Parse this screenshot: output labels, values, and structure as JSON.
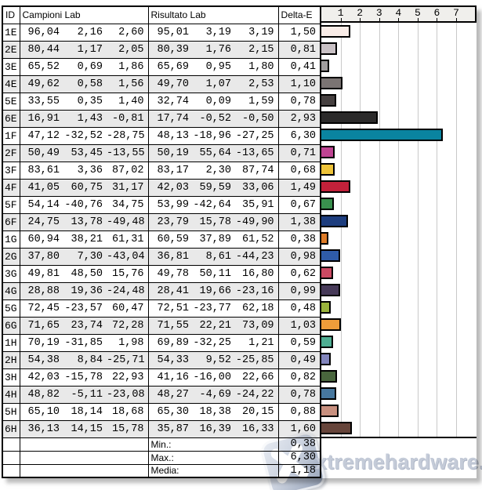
{
  "table": {
    "headers": {
      "id": "ID",
      "campioni": "Campioni Lab",
      "risultato": "Risultato Lab",
      "delta": "Delta-E"
    },
    "rows": [
      {
        "id": "1E",
        "campioni": [
          "96,04",
          "2,16",
          "2,60"
        ],
        "risultato": [
          "95,01",
          "3,19",
          "3,19"
        ],
        "delta": "1,50",
        "delta_value": 1.5,
        "color": "#f9ece7"
      },
      {
        "id": "2E",
        "campioni": [
          "80,44",
          "1,17",
          "2,05"
        ],
        "risultato": [
          "80,39",
          "1,76",
          "2,15"
        ],
        "delta": "0,81",
        "delta_value": 0.81,
        "color": "#c9c1c5"
      },
      {
        "id": "3E",
        "campioni": [
          "65,52",
          "0,69",
          "1,86"
        ],
        "risultato": [
          "65,69",
          "0,95",
          "1,80"
        ],
        "delta": "0,41",
        "delta_value": 0.41,
        "color": "#a09d9e"
      },
      {
        "id": "4E",
        "campioni": [
          "49,62",
          "0,58",
          "1,56"
        ],
        "risultato": [
          "49,70",
          "1,07",
          "2,53"
        ],
        "delta": "1,10",
        "delta_value": 1.1,
        "color": "#7b7473"
      },
      {
        "id": "5E",
        "campioni": [
          "33,55",
          "0,35",
          "1,40"
        ],
        "risultato": [
          "32,74",
          "0,09",
          "1,59"
        ],
        "delta": "0,78",
        "delta_value": 0.78,
        "color": "#464040"
      },
      {
        "id": "6E",
        "campioni": [
          "16,91",
          "1,43",
          "-0,81"
        ],
        "risultato": [
          "17,74",
          "-0,52",
          "-0,50"
        ],
        "delta": "2,93",
        "delta_value": 2.93,
        "color": "#2b2a2a"
      },
      {
        "id": "1F",
        "campioni": [
          "47,12",
          "-32,52",
          "-28,75"
        ],
        "risultato": [
          "48,13",
          "-18,96",
          "-27,25"
        ],
        "delta": "6,30",
        "delta_value": 6.3,
        "color": "#0a84a0"
      },
      {
        "id": "2F",
        "campioni": [
          "50,49",
          "53,45",
          "-13,55"
        ],
        "risultato": [
          "50,19",
          "55,64",
          "-13,65"
        ],
        "delta": "0,71",
        "delta_value": 0.71,
        "color": "#bf4493"
      },
      {
        "id": "3F",
        "campioni": [
          "83,61",
          "3,36",
          "87,02"
        ],
        "risultato": [
          "83,17",
          "2,30",
          "87,74"
        ],
        "delta": "0,68",
        "delta_value": 0.68,
        "color": "#eec339"
      },
      {
        "id": "4F",
        "campioni": [
          "41,05",
          "60,75",
          "31,17"
        ],
        "risultato": [
          "42,03",
          "59,59",
          "33,06"
        ],
        "delta": "1,49",
        "delta_value": 1.49,
        "color": "#c2213a"
      },
      {
        "id": "5F",
        "campioni": [
          "54,14",
          "-40,76",
          "34,75"
        ],
        "risultato": [
          "53,99",
          "-42,64",
          "35,91"
        ],
        "delta": "0,67",
        "delta_value": 0.67,
        "color": "#39904e"
      },
      {
        "id": "6F",
        "campioni": [
          "24,75",
          "13,78",
          "-49,48"
        ],
        "risultato": [
          "23,79",
          "15,78",
          "-49,90"
        ],
        "delta": "1,38",
        "delta_value": 1.38,
        "color": "#1d3d7e"
      },
      {
        "id": "1G",
        "campioni": [
          "60,94",
          "38,21",
          "61,31"
        ],
        "risultato": [
          "60,59",
          "37,89",
          "61,52"
        ],
        "delta": "0,38",
        "delta_value": 0.38,
        "color": "#dd7b28"
      },
      {
        "id": "2G",
        "campioni": [
          "37,80",
          "7,30",
          "-43,04"
        ],
        "risultato": [
          "36,81",
          "8,61",
          "-44,23"
        ],
        "delta": "0,98",
        "delta_value": 0.98,
        "color": "#2f5ba8"
      },
      {
        "id": "3G",
        "campioni": [
          "49,81",
          "48,50",
          "15,76"
        ],
        "risultato": [
          "49,78",
          "50,11",
          "16,80"
        ],
        "delta": "0,62",
        "delta_value": 0.62,
        "color": "#cc4a63"
      },
      {
        "id": "4G",
        "campioni": [
          "28,88",
          "19,36",
          "-24,48"
        ],
        "risultato": [
          "28,41",
          "19,66",
          "-23,16"
        ],
        "delta": "0,99",
        "delta_value": 0.99,
        "color": "#473a59"
      },
      {
        "id": "5G",
        "campioni": [
          "72,45",
          "-23,57",
          "60,47"
        ],
        "risultato": [
          "72,51",
          "-23,77",
          "62,18"
        ],
        "delta": "0,48",
        "delta_value": 0.48,
        "color": "#9ab33c"
      },
      {
        "id": "6G",
        "campioni": [
          "71,65",
          "23,74",
          "72,28"
        ],
        "risultato": [
          "71,55",
          "22,21",
          "73,09"
        ],
        "delta": "1,03",
        "delta_value": 1.03,
        "color": "#ef9d3a"
      },
      {
        "id": "1H",
        "campioni": [
          "70,19",
          "-31,85",
          "1,98"
        ],
        "risultato": [
          "69,89",
          "-32,25",
          "1,21"
        ],
        "delta": "0,59",
        "delta_value": 0.59,
        "color": "#4fae93"
      },
      {
        "id": "2H",
        "campioni": [
          "54,38",
          "8,84",
          "-25,71"
        ],
        "risultato": [
          "54,33",
          "9,52",
          "-25,85"
        ],
        "delta": "0,49",
        "delta_value": 0.49,
        "color": "#8184bc"
      },
      {
        "id": "3H",
        "campioni": [
          "42,03",
          "-15,78",
          "22,93"
        ],
        "risultato": [
          "41,16",
          "-16,00",
          "22,66"
        ],
        "delta": "0,82",
        "delta_value": 0.82,
        "color": "#49663d"
      },
      {
        "id": "4H",
        "campioni": [
          "48,82",
          "-5,11",
          "-23,08"
        ],
        "risultato": [
          "48,27",
          "-4,69",
          "-24,22"
        ],
        "delta": "0,78",
        "delta_value": 0.78,
        "color": "#47789f"
      },
      {
        "id": "5H",
        "campioni": [
          "65,10",
          "18,14",
          "18,68"
        ],
        "risultato": [
          "65,30",
          "18,38",
          "20,15"
        ],
        "delta": "0,88",
        "delta_value": 0.88,
        "color": "#c8907f"
      },
      {
        "id": "6H",
        "campioni": [
          "36,13",
          "14,15",
          "15,78"
        ],
        "risultato": [
          "35,87",
          "16,39",
          "16,33"
        ],
        "delta": "1,60",
        "delta_value": 1.6,
        "color": "#66443a"
      }
    ],
    "summary": [
      {
        "label": "Min.:",
        "value": "0,38"
      },
      {
        "label": "Max.:",
        "value": "6,30"
      },
      {
        "label": "Media:",
        "value": "1,18"
      }
    ]
  },
  "chart_data": {
    "type": "bar",
    "orientation": "horizontal",
    "title": "Delta-E",
    "categories": [
      "1E",
      "2E",
      "3E",
      "4E",
      "5E",
      "6E",
      "1F",
      "2F",
      "3F",
      "4F",
      "5F",
      "6F",
      "1G",
      "2G",
      "3G",
      "4G",
      "5G",
      "6G",
      "1H",
      "2H",
      "3H",
      "4H",
      "5H",
      "6H"
    ],
    "values": [
      1.5,
      0.81,
      0.41,
      1.1,
      0.78,
      2.93,
      6.3,
      0.71,
      0.68,
      1.49,
      0.67,
      1.38,
      0.38,
      0.98,
      0.62,
      0.99,
      0.48,
      1.03,
      0.59,
      0.49,
      0.82,
      0.78,
      0.88,
      1.6
    ],
    "bar_colors": [
      "#f9ece7",
      "#c9c1c5",
      "#a09d9e",
      "#7b7473",
      "#464040",
      "#2b2a2a",
      "#0a84a0",
      "#bf4493",
      "#eec339",
      "#c2213a",
      "#39904e",
      "#1d3d7e",
      "#dd7b28",
      "#2f5ba8",
      "#cc4a63",
      "#473a59",
      "#9ab33c",
      "#ef9d3a",
      "#4fae93",
      "#8184bc",
      "#49663d",
      "#47789f",
      "#c8907f",
      "#66443a"
    ],
    "x_ticks": [
      1,
      2,
      3,
      4,
      5,
      6,
      7
    ],
    "xlim": [
      0,
      8
    ],
    "grid": true,
    "summary": {
      "min": 0.38,
      "max": 6.3,
      "media": 1.18
    }
  },
  "watermark": {
    "text": "xtremehardware.com"
  },
  "colors": {
    "grid": "#c9c9c9",
    "row_shade": "#e9e9e9",
    "chart_header_bg": "#f0efec",
    "watermark_text": "#c4cbd8"
  }
}
